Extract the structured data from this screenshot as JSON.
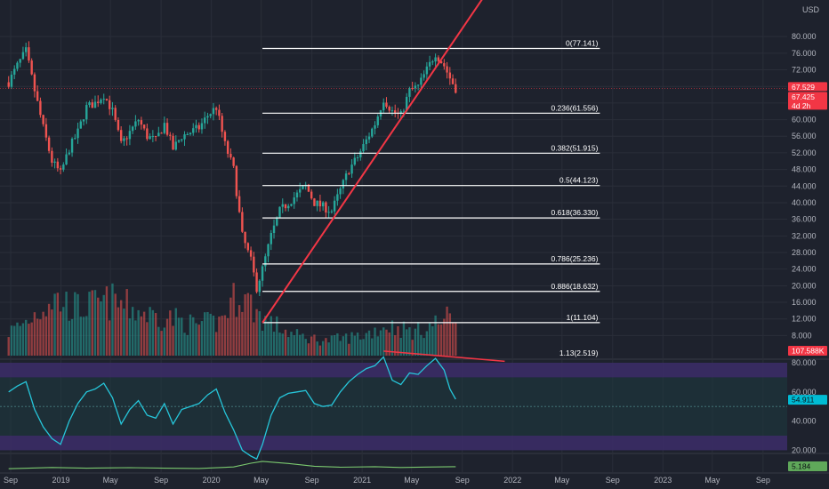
{
  "currency": "USD",
  "colors": {
    "background": "#1e222d",
    "grid": "#2a2e39",
    "up": "#26a69a",
    "down": "#ef5350",
    "fib_line": "#ffffff",
    "trendline": "#f23645",
    "rsi_line": "#26c6da",
    "rsi_band": "#3a2c66",
    "rsi_mid": "#1e3b3f",
    "atr_line": "#7bc96f",
    "price_tag": "#f23645",
    "rsi_tag": "#00bcd4",
    "atr_tag": "#5fa85a"
  },
  "chart_data": [
    {
      "type": "candlestick",
      "name": "price",
      "frequency": "weekly",
      "price_axis_ticks": [
        8,
        12,
        16,
        20,
        24,
        28,
        32,
        36,
        40,
        44,
        48,
        52,
        56,
        60,
        64,
        68,
        72,
        76,
        80
      ],
      "price_axis_labels": [
        "8.000",
        "12.000",
        "16.000",
        "20.000",
        "24.000",
        "28.000",
        "32.000",
        "36.000",
        "40.000",
        "44.000",
        "48.000",
        "52.000",
        "56.000",
        "60.000",
        "64.000",
        "68.000",
        "72.000",
        "76.000",
        "80.000"
      ],
      "time_axis_labels": [
        "Sep",
        "2019",
        "May",
        "Sep",
        "2020",
        "May",
        "Sep",
        "2021",
        "May",
        "Sep",
        "2022",
        "May",
        "Sep",
        "2023",
        "May",
        "Sep"
      ],
      "last_price_label": "67.529",
      "current_price_label": "67.425",
      "countdown_label": "4d 2h",
      "volume_label": "107.588K",
      "price_path": [
        [
          "2018-08-27",
          69
        ],
        [
          "2018-09-17",
          73
        ],
        [
          "2018-10-08",
          76.5
        ],
        [
          "2018-10-29",
          67
        ],
        [
          "2018-11-19",
          58
        ],
        [
          "2018-12-10",
          50
        ],
        [
          "2018-12-31",
          47
        ],
        [
          "2019-01-21",
          53
        ],
        [
          "2019-02-11",
          57
        ],
        [
          "2019-03-04",
          63
        ],
        [
          "2019-03-25",
          64
        ],
        [
          "2019-04-15",
          66
        ],
        [
          "2019-05-06",
          62
        ],
        [
          "2019-05-27",
          54
        ],
        [
          "2019-06-17",
          57
        ],
        [
          "2019-07-08",
          60
        ],
        [
          "2019-07-29",
          56
        ],
        [
          "2019-08-19",
          55
        ],
        [
          "2019-09-09",
          59
        ],
        [
          "2019-09-30",
          53
        ],
        [
          "2019-10-21",
          56
        ],
        [
          "2019-11-11",
          57
        ],
        [
          "2019-12-02",
          58
        ],
        [
          "2019-12-23",
          61
        ],
        [
          "2020-01-13",
          63
        ],
        [
          "2020-02-03",
          54
        ],
        [
          "2020-02-24",
          48
        ],
        [
          "2020-03-16",
          32
        ],
        [
          "2020-04-06",
          26
        ],
        [
          "2020-04-20",
          19.5
        ],
        [
          "2020-05-04",
          24
        ],
        [
          "2020-05-25",
          32
        ],
        [
          "2020-06-15",
          38
        ],
        [
          "2020-07-06",
          40
        ],
        [
          "2020-07-27",
          42
        ],
        [
          "2020-08-17",
          44
        ],
        [
          "2020-09-07",
          40
        ],
        [
          "2020-09-28",
          39
        ],
        [
          "2020-10-19",
          38
        ],
        [
          "2020-11-09",
          43
        ],
        [
          "2020-11-30",
          48
        ],
        [
          "2020-12-21",
          51
        ],
        [
          "2021-01-11",
          55
        ],
        [
          "2021-02-01",
          59
        ],
        [
          "2021-02-22",
          65
        ],
        [
          "2021-03-15",
          62
        ],
        [
          "2021-04-05",
          61
        ],
        [
          "2021-04-26",
          67
        ],
        [
          "2021-05-17",
          68
        ],
        [
          "2021-06-07",
          72
        ],
        [
          "2021-06-28",
          76
        ],
        [
          "2021-07-19",
          73
        ],
        [
          "2021-08-02",
          70
        ],
        [
          "2021-08-16",
          67.5
        ]
      ],
      "volume_path": [
        [
          "2018-08-27",
          0.35
        ],
        [
          "2018-10-08",
          0.5
        ],
        [
          "2018-12-10",
          0.85
        ],
        [
          "2019-02-11",
          0.7
        ],
        [
          "2019-05-06",
          0.8
        ],
        [
          "2019-08-05",
          0.6
        ],
        [
          "2019-09-30",
          0.55
        ],
        [
          "2019-11-18",
          0.45
        ],
        [
          "2020-01-20",
          0.5
        ],
        [
          "2020-03-09",
          0.95
        ],
        [
          "2020-05-04",
          0.55
        ],
        [
          "2020-07-20",
          0.3
        ],
        [
          "2020-10-05",
          0.22
        ],
        [
          "2021-01-04",
          0.3
        ],
        [
          "2021-03-01",
          0.45
        ],
        [
          "2021-05-10",
          0.35
        ],
        [
          "2021-08-16",
          0.6
        ]
      ],
      "fibonacci": {
        "start_date": "2020-05-04",
        "end_date": "2022-08-01",
        "levels": [
          {
            "label": "0(77.141)",
            "price": 77.141
          },
          {
            "label": "0.236(61.556)",
            "price": 61.556
          },
          {
            "label": "0.382(51.915)",
            "price": 51.915
          },
          {
            "label": "0.5(44.123)",
            "price": 44.123
          },
          {
            "label": "0.618(36.330)",
            "price": 36.33
          },
          {
            "label": "0.786(25.236)",
            "price": 25.236
          },
          {
            "label": "0.886(18.632)",
            "price": 18.632
          },
          {
            "label": "1(11.104)",
            "price": 11.104
          },
          {
            "label": "1.13(2.519)",
            "price": 2.519
          }
        ]
      },
      "trendline": [
        [
          "2020-05-04",
          11.104
        ],
        [
          "2021-12-13",
          97
        ]
      ]
    },
    {
      "type": "line",
      "name": "RSI",
      "axis_ticks": [
        20,
        40,
        60,
        80
      ],
      "axis_labels": [
        "20.000",
        "40.000",
        "60.000",
        "80.000"
      ],
      "bands": {
        "upper": [
          70,
          80
        ],
        "lower": [
          20,
          30
        ],
        "middle": [
          30,
          70
        ]
      },
      "last_value_label": "54.911",
      "values": [
        [
          "2018-08-27",
          60
        ],
        [
          "2018-09-17",
          64
        ],
        [
          "2018-10-08",
          67
        ],
        [
          "2018-10-29",
          48
        ],
        [
          "2018-11-19",
          36
        ],
        [
          "2018-12-10",
          28
        ],
        [
          "2018-12-31",
          24
        ],
        [
          "2019-01-21",
          40
        ],
        [
          "2019-02-11",
          52
        ],
        [
          "2019-03-04",
          60
        ],
        [
          "2019-03-25",
          62
        ],
        [
          "2019-04-15",
          66
        ],
        [
          "2019-05-06",
          56
        ],
        [
          "2019-05-27",
          38
        ],
        [
          "2019-06-17",
          48
        ],
        [
          "2019-07-08",
          54
        ],
        [
          "2019-07-29",
          44
        ],
        [
          "2019-08-19",
          42
        ],
        [
          "2019-09-09",
          52
        ],
        [
          "2019-09-30",
          38
        ],
        [
          "2019-10-21",
          48
        ],
        [
          "2019-11-11",
          50
        ],
        [
          "2019-12-02",
          52
        ],
        [
          "2019-12-23",
          58
        ],
        [
          "2020-01-13",
          62
        ],
        [
          "2020-02-03",
          46
        ],
        [
          "2020-02-24",
          34
        ],
        [
          "2020-03-16",
          20
        ],
        [
          "2020-04-06",
          16
        ],
        [
          "2020-04-20",
          14
        ],
        [
          "2020-05-04",
          24
        ],
        [
          "2020-05-25",
          44
        ],
        [
          "2020-06-15",
          56
        ],
        [
          "2020-07-06",
          59
        ],
        [
          "2020-07-27",
          60
        ],
        [
          "2020-08-17",
          61
        ],
        [
          "2020-09-07",
          52
        ],
        [
          "2020-09-28",
          50
        ],
        [
          "2020-10-19",
          51
        ],
        [
          "2020-11-09",
          60
        ],
        [
          "2020-11-30",
          67
        ],
        [
          "2020-12-21",
          72
        ],
        [
          "2021-01-11",
          76
        ],
        [
          "2021-02-01",
          78
        ],
        [
          "2021-02-22",
          84
        ],
        [
          "2021-03-15",
          68
        ],
        [
          "2021-04-05",
          65
        ],
        [
          "2021-04-26",
          73
        ],
        [
          "2021-05-17",
          72
        ],
        [
          "2021-06-07",
          78
        ],
        [
          "2021-06-28",
          83
        ],
        [
          "2021-07-19",
          75
        ],
        [
          "2021-08-02",
          62
        ],
        [
          "2021-08-16",
          55
        ]
      ],
      "divergence_line": [
        [
          "2021-02-22",
          88
        ],
        [
          "2021-12-13",
          81
        ]
      ]
    },
    {
      "type": "line",
      "name": "ATR",
      "last_value_label": "5.184",
      "values": [
        [
          "2018-08-27",
          3.6
        ],
        [
          "2018-12-10",
          4.6
        ],
        [
          "2019-03-04",
          4.0
        ],
        [
          "2019-06-17",
          4.4
        ],
        [
          "2019-09-09",
          4.0
        ],
        [
          "2019-12-02",
          3.8
        ],
        [
          "2020-02-24",
          5.0
        ],
        [
          "2020-04-06",
          8.0
        ],
        [
          "2020-05-04",
          9.5
        ],
        [
          "2020-07-06",
          7.8
        ],
        [
          "2020-09-07",
          5.6
        ],
        [
          "2020-11-09",
          4.8
        ],
        [
          "2021-02-01",
          5.2
        ],
        [
          "2021-04-05",
          4.6
        ],
        [
          "2021-06-07",
          4.9
        ],
        [
          "2021-08-16",
          5.18
        ]
      ]
    }
  ]
}
